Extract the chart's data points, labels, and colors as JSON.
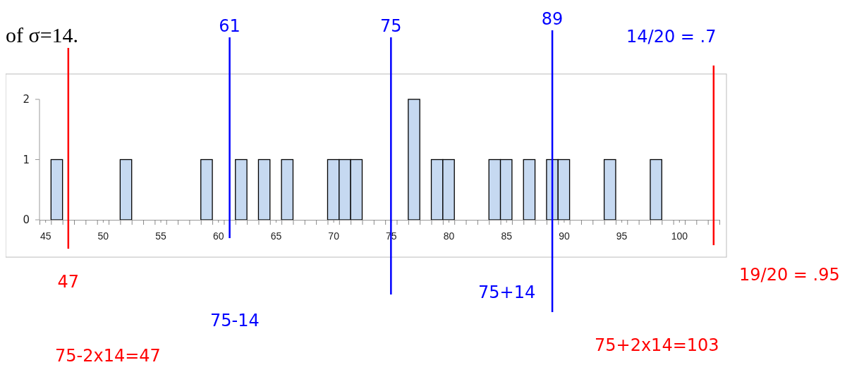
{
  "chart_data": {
    "type": "bar",
    "x": [
      46,
      52,
      59,
      62,
      64,
      66,
      70,
      71,
      72,
      77,
      79,
      80,
      84,
      85,
      87,
      89,
      90,
      94,
      98
    ],
    "values": [
      1,
      1,
      1,
      1,
      1,
      1,
      1,
      1,
      1,
      2,
      1,
      1,
      1,
      1,
      1,
      1,
      1,
      1,
      1
    ],
    "color": "#c6d9f1",
    "xlim": [
      44.5,
      103.5
    ],
    "xticks": [
      45,
      50,
      55,
      60,
      65,
      70,
      75,
      80,
      85,
      90,
      95,
      100,
      {
        "value": 44.5,
        "label": null
      },
      {
        "value": 45.5,
        "label": null
      },
      {
        "value": 46.5,
        "label": null
      },
      {
        "value": 47.5,
        "label": null
      },
      {
        "value": 48.5,
        "label": null
      },
      {
        "value": 49.5,
        "label": null
      },
      {
        "value": 50.5,
        "label": null
      },
      {
        "value": 51.5,
        "label": null
      },
      {
        "value": 52.5,
        "label": null
      },
      {
        "value": 53.5,
        "label": null
      },
      {
        "value": 54.5,
        "label": null
      },
      {
        "value": 55.5,
        "label": null
      },
      {
        "value": 56.5,
        "label": null
      },
      {
        "value": 57.5,
        "label": null
      },
      {
        "value": 58.5,
        "label": null
      },
      {
        "value": 59.5,
        "label": null
      },
      {
        "value": 60.5,
        "label": null
      },
      {
        "value": 61.5,
        "label": null
      },
      {
        "value": 62.5,
        "label": null
      },
      {
        "value": 63.5,
        "label": null
      },
      {
        "value": 64.5,
        "label": null
      },
      {
        "value": 65.5,
        "label": null
      },
      {
        "value": 66.5,
        "label": null
      },
      {
        "value": 67.5,
        "label": null
      },
      {
        "value": 68.5,
        "label": null
      },
      {
        "value": 69.5,
        "label": null
      },
      {
        "value": 70.5,
        "label": null
      },
      {
        "value": 71.5,
        "label": null
      },
      {
        "value": 72.5,
        "label": null
      },
      {
        "value": 73.5,
        "label": null
      },
      {
        "value": 74.5,
        "label": null
      },
      {
        "value": 75.5,
        "label": null
      },
      {
        "value": 76.5,
        "label": null
      },
      {
        "value": 77.5,
        "label": null
      },
      {
        "value": 78.5,
        "label": null
      },
      {
        "value": 79.5,
        "label": null
      },
      {
        "value": 80.5,
        "label": null
      },
      {
        "value": 81.5,
        "label": null
      },
      {
        "value": 82.5,
        "label": null
      },
      {
        "value": 83.5,
        "label": null
      },
      {
        "value": 84.5,
        "label": null
      },
      {
        "value": 85.5,
        "label": null
      },
      {
        "value": 86.5,
        "label": null
      },
      {
        "value": 87.5,
        "label": null
      },
      {
        "value": 88.5,
        "label": null
      },
      {
        "value": 89.5,
        "label": null
      },
      {
        "value": 90.5,
        "label": null
      },
      {
        "value": 91.5,
        "label": null
      },
      {
        "value": 92.5,
        "label": null
      },
      {
        "value": 93.5,
        "label": null
      },
      {
        "value": 94.5,
        "label": null
      },
      {
        "value": 95.5,
        "label": null
      },
      {
        "value": 96.5,
        "label": null
      },
      {
        "value": 97.5,
        "label": null
      },
      {
        "value": 98.5,
        "label": null
      },
      {
        "value": 99.5,
        "label": null
      },
      {
        "value": 100.5,
        "label": null
      },
      {
        "value": 101.5,
        "label": null
      },
      {
        "value": 102.5,
        "label": null
      },
      {
        "value": 103.5,
        "label": null
      }
    ],
    "ylim": [
      0,
      2
    ],
    "yticks": [
      0,
      1,
      2
    ],
    "grid": false,
    "legend": false,
    "ref_lines": [
      {
        "axis": "x",
        "value": 47,
        "label": null,
        "color": "#ff0000"
      },
      {
        "axis": "x",
        "value": 61,
        "label": "61",
        "color": "#0000ff"
      },
      {
        "axis": "x",
        "value": 75,
        "label": "75",
        "color": "#0000ff"
      },
      {
        "axis": "x",
        "value": 89,
        "label": "89",
        "color": "#0000ff"
      },
      {
        "axis": "x",
        "value": 103,
        "label": null,
        "color": "#ff0000"
      }
    ],
    "annotations": [
      "of σ=14.",
      "14/20 = .7",
      "47",
      "75-14",
      "75+14",
      "19/20 = .95",
      "75-2x14=47",
      "75+2x14=103"
    ]
  }
}
